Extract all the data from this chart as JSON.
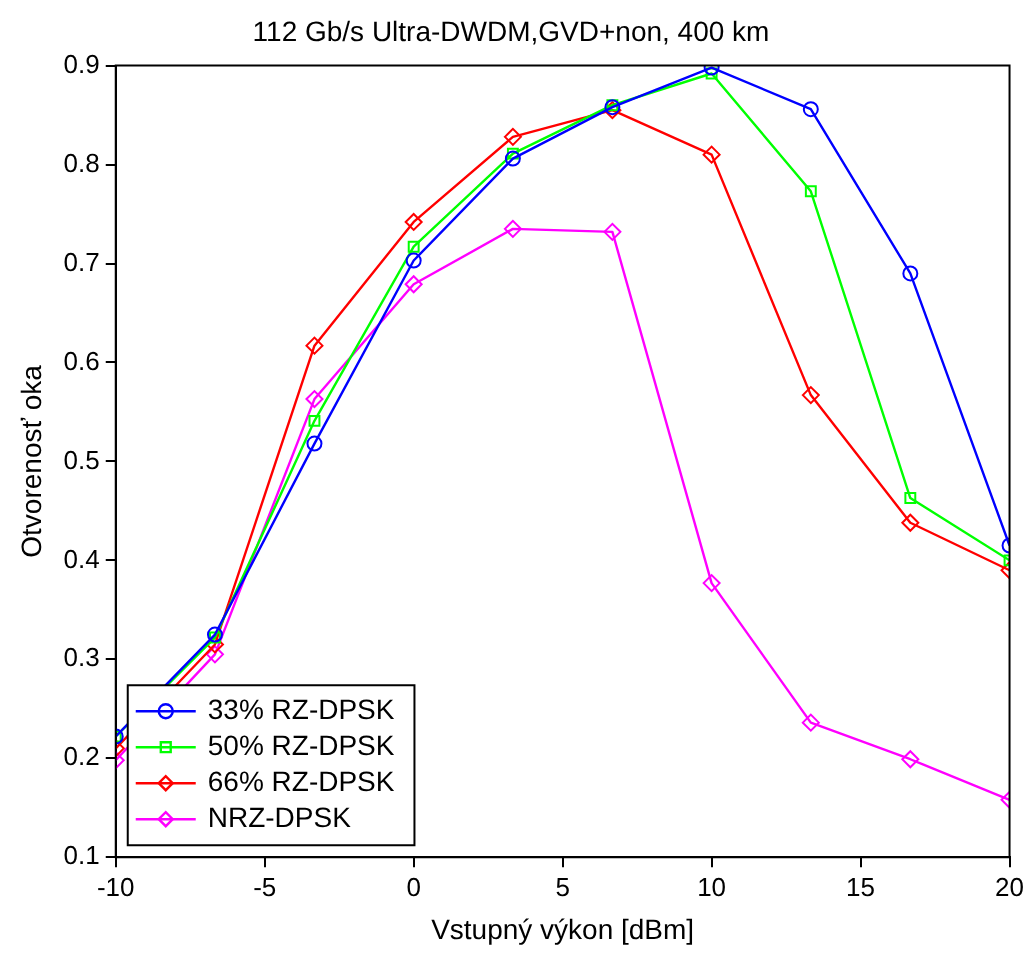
{
  "chart_data": {
    "type": "line",
    "title": "112 Gb/s Ultra-DWDM,GVD+non, 400 km",
    "xlabel": "Vstupný výkon [dBm]",
    "ylabel": "Otvorenosť oka",
    "x": [
      -10,
      -6.67,
      -3.33,
      0,
      3.33,
      6.67,
      10,
      13.33,
      16.67,
      20
    ],
    "series": [
      {
        "name": "33% RZ-DPSK",
        "color": "#0000ff",
        "marker": "circle",
        "values": [
          0.222,
          0.325,
          0.518,
          0.703,
          0.806,
          0.858,
          0.898,
          0.856,
          0.69,
          0.415
        ]
      },
      {
        "name": "50% RZ-DPSK",
        "color": "#00ff00",
        "marker": "square",
        "values": [
          0.222,
          0.322,
          0.541,
          0.717,
          0.811,
          0.86,
          0.892,
          0.773,
          0.463,
          0.4
        ]
      },
      {
        "name": "66% RZ-DPSK",
        "color": "#ff0000",
        "marker": "diamond",
        "values": [
          0.21,
          0.315,
          0.617,
          0.742,
          0.828,
          0.855,
          0.81,
          0.567,
          0.438,
          0.39
        ]
      },
      {
        "name": "NRZ-DPSK",
        "color": "#ff00ff",
        "marker": "diamond",
        "values": [
          0.198,
          0.305,
          0.563,
          0.679,
          0.735,
          0.732,
          0.377,
          0.236,
          0.199,
          0.158
        ]
      }
    ],
    "xlim": [
      -10,
      20
    ],
    "xticks": [
      -10,
      -5,
      0,
      5,
      10,
      15,
      20
    ],
    "ylim": [
      0.1,
      0.9
    ],
    "yticks": [
      0.1,
      0.2,
      0.3,
      0.4,
      0.5,
      0.6,
      0.7,
      0.8,
      0.9
    ],
    "grid": false,
    "legend": "bottom left",
    "line_style": "solid"
  }
}
